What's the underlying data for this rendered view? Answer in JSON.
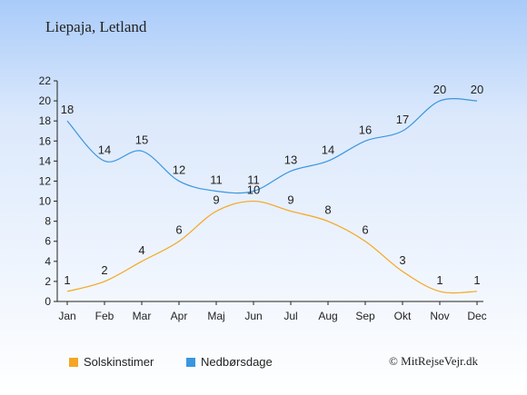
{
  "title": "Liepaja, Letland",
  "credit": "© MitRejseVejr.dk",
  "chart_data": {
    "type": "line",
    "categories": [
      "Jan",
      "Feb",
      "Mar",
      "Apr",
      "Maj",
      "Jun",
      "Jul",
      "Aug",
      "Sep",
      "Okt",
      "Nov",
      "Dec"
    ],
    "series": [
      {
        "name": "Solskinstimer",
        "values": [
          1,
          2,
          4,
          6,
          9,
          10,
          9,
          8,
          6,
          3,
          1,
          1
        ],
        "color": "#f5a623"
      },
      {
        "name": "Nedbørsdage",
        "values": [
          18,
          14,
          15,
          12,
          11,
          11,
          13,
          14,
          16,
          17,
          20,
          20
        ],
        "color": "#3a96e0"
      }
    ],
    "ylim": [
      0,
      22
    ],
    "yticks": [
      "0",
      "2",
      "4",
      "6",
      "8",
      "10",
      "12",
      "14",
      "16",
      "18",
      "20",
      "22"
    ],
    "grid": false,
    "legend_position": "bottom"
  }
}
